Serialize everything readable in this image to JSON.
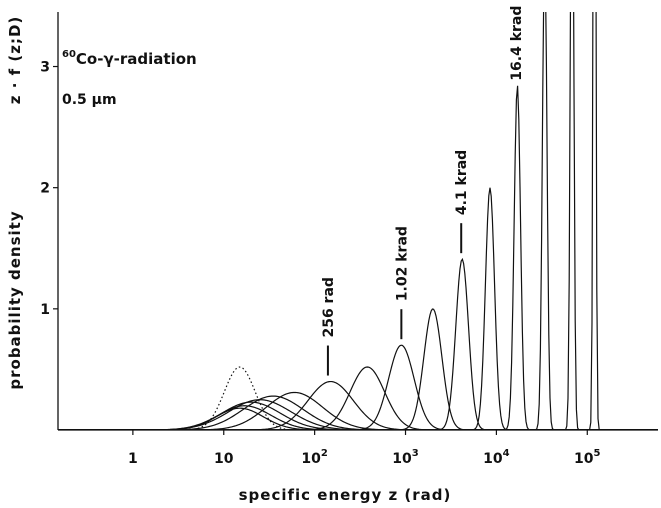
{
  "chart_data": {
    "type": "line",
    "xlabel": "specific energy z (rad)",
    "ylabel": "probability density",
    "y_corner_label": "z · f (z;D)",
    "x_scale": "log",
    "xlim": [
      0.15,
      600000
    ],
    "ylim": [
      0,
      3.45
    ],
    "x_ticks": [
      {
        "value": 1,
        "label": "1"
      },
      {
        "value": 10,
        "label": "10"
      },
      {
        "value": 100,
        "label": "10",
        "exp": "2"
      },
      {
        "value": 1000,
        "label": "10",
        "exp": "3"
      },
      {
        "value": 10000,
        "label": "10",
        "exp": "4"
      },
      {
        "value": 100000,
        "label": "10",
        "exp": "5"
      }
    ],
    "y_ticks": [
      {
        "value": 1,
        "label": "1"
      },
      {
        "value": 2,
        "label": "2"
      },
      {
        "value": 3,
        "label": "3"
      }
    ],
    "grid": false,
    "annotations": {
      "source_mass": "60",
      "source_text": "Co-γ-radiation",
      "site_size": "0.5 μm",
      "dose_labels": [
        {
          "text": "256 rad",
          "x": 140
        },
        {
          "text": "1.02 krad",
          "x": 900
        },
        {
          "text": "4.1 krad",
          "x": 4100
        },
        {
          "text": "16.4 krad",
          "x": 16400
        }
      ]
    },
    "series": [
      {
        "style": "dotted",
        "peak_x": 15,
        "peak_y": 0.52,
        "width": 0.17
      },
      {
        "style": "solid",
        "peak_x": 15,
        "peak_y": 0.18,
        "width": 0.26
      },
      {
        "style": "solid",
        "peak_x": 17,
        "peak_y": 0.2,
        "width": 0.29
      },
      {
        "style": "solid",
        "peak_x": 20,
        "peak_y": 0.23,
        "width": 0.32
      },
      {
        "style": "solid",
        "peak_x": 25,
        "peak_y": 0.25,
        "width": 0.34
      },
      {
        "style": "solid",
        "peak_x": 35,
        "peak_y": 0.28,
        "width": 0.33
      },
      {
        "style": "solid",
        "peak_x": 60,
        "peak_y": 0.31,
        "width": 0.31
      },
      {
        "style": "solid",
        "peak_x": 150,
        "peak_y": 0.4,
        "width": 0.25
      },
      {
        "style": "solid",
        "peak_x": 380,
        "peak_y": 0.52,
        "width": 0.19
      },
      {
        "style": "solid",
        "peak_x": 900,
        "peak_y": 0.7,
        "width": 0.14
      },
      {
        "style": "solid",
        "peak_x": 2000,
        "peak_y": 1.0,
        "width": 0.099
      },
      {
        "style": "solid",
        "peak_x": 4200,
        "peak_y": 1.41,
        "width": 0.07
      },
      {
        "style": "solid",
        "peak_x": 8500,
        "peak_y": 2.0,
        "width": 0.05
      },
      {
        "style": "solid",
        "peak_x": 17000,
        "peak_y": 2.85,
        "width": 0.035
      },
      {
        "style": "solid",
        "peak_x": 34000,
        "peak_y": 4.0,
        "width": 0.025
      },
      {
        "style": "solid",
        "peak_x": 68000,
        "peak_y": 5.7,
        "width": 0.018
      },
      {
        "style": "solid",
        "peak_x": 120000,
        "peak_y": 8.0,
        "width": 0.013
      }
    ]
  }
}
